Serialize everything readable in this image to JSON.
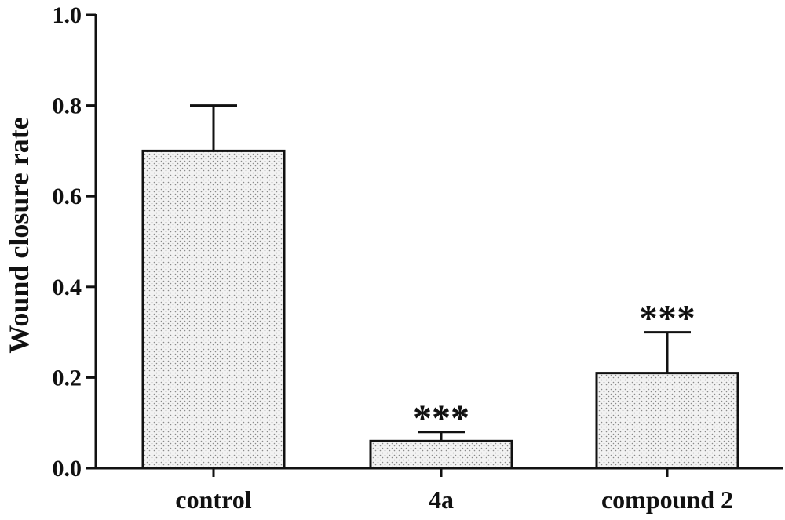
{
  "chart_data": {
    "type": "bar",
    "title": "",
    "xlabel": "",
    "ylabel": "Wound closure rate",
    "ylim": [
      0,
      1.0
    ],
    "yticks": [
      "0.0",
      "0.2",
      "0.4",
      "0.6",
      "0.8",
      "1.0"
    ],
    "categories": [
      "control",
      "4a",
      "compound 2"
    ],
    "values": [
      0.7,
      0.06,
      0.21
    ],
    "error_upper": [
      0.1,
      0.02,
      0.09
    ],
    "annotations": [
      "",
      "***",
      "***"
    ],
    "bar_fill": "#ececec",
    "bar_stroke": "#111111",
    "grid": false,
    "legend": "none"
  }
}
